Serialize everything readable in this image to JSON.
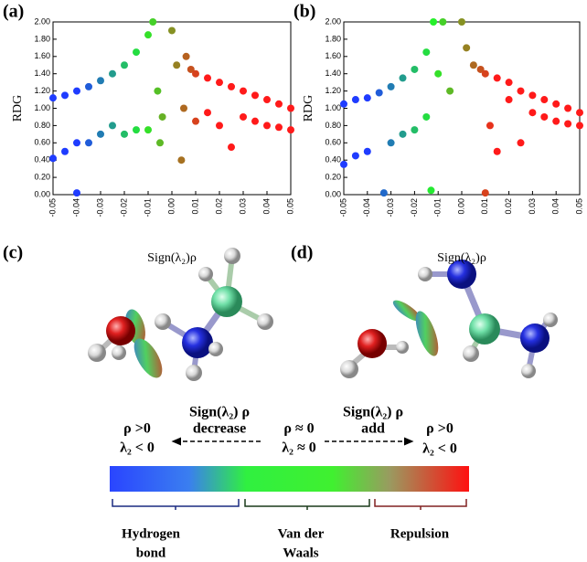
{
  "chart_data": [
    {
      "type": "scatter",
      "panel": "(a)",
      "xlabel": "Sign(λ₂)ρ",
      "ylabel": "RDG",
      "xlim": [
        -0.05,
        0.05
      ],
      "ylim": [
        0,
        2
      ],
      "xticks": [
        -0.05,
        -0.04,
        -0.03,
        -0.02,
        -0.01,
        {
          "value": 0,
          "label": "0.00"
        },
        0.01,
        0.02,
        0.03,
        0.04,
        0.05
      ],
      "yticks": [
        {
          "value": 0,
          "label": "0.00"
        },
        {
          "value": 0.2,
          "label": "0.20"
        },
        {
          "value": 0.4,
          "label": "0.40"
        },
        {
          "value": 0.6,
          "label": "0.60"
        },
        {
          "value": 0.8,
          "label": "0.80"
        },
        {
          "value": 1,
          "label": "1.00"
        },
        {
          "value": 1.2,
          "label": "1.20"
        },
        {
          "value": 1.4,
          "label": "1.40"
        },
        {
          "value": 1.6,
          "label": "1.60"
        },
        {
          "value": 1.8,
          "label": "1.80"
        },
        {
          "value": 2,
          "label": "2.00"
        }
      ],
      "colormap": [
        "#1f3cff",
        "#25f02a",
        "#ff1a1a"
      ],
      "color_stops": [
        -0.04,
        -0.012,
        0.015
      ],
      "series": [
        {
          "x": [
            -0.05,
            -0.05,
            -0.045,
            -0.045,
            -0.04,
            -0.04,
            -0.04,
            -0.035,
            -0.035,
            -0.03,
            -0.03,
            -0.025,
            -0.025,
            -0.02,
            -0.02,
            -0.015,
            -0.015,
            -0.01,
            -0.01,
            -0.008,
            -0.006,
            -0.005,
            -0.004,
            0.0,
            0.002,
            0.004,
            0.005,
            0.006,
            0.008,
            0.01,
            0.01,
            0.015,
            0.015,
            0.02,
            0.02,
            0.025,
            0.025,
            0.03,
            0.03,
            0.035,
            0.035,
            0.04,
            0.04,
            0.045,
            0.045,
            0.05,
            0.05
          ],
          "values": [
            1.12,
            0.42,
            1.15,
            0.5,
            1.2,
            0.02,
            0.6,
            1.25,
            0.6,
            1.32,
            0.7,
            1.4,
            0.8,
            1.5,
            0.7,
            1.65,
            0.75,
            1.85,
            0.75,
            2.0,
            1.2,
            0.6,
            0.9,
            1.9,
            1.5,
            0.4,
            1.0,
            1.6,
            1.45,
            1.4,
            0.85,
            1.35,
            0.95,
            1.3,
            0.8,
            1.25,
            0.55,
            1.2,
            0.9,
            1.15,
            0.85,
            1.1,
            0.8,
            1.05,
            0.78,
            1.0,
            0.75
          ]
        }
      ]
    },
    {
      "type": "scatter",
      "panel": "(b)",
      "xlabel": "Sign(λ₂)ρ",
      "ylabel": "RDG",
      "xlim": [
        -0.05,
        0.05
      ],
      "ylim": [
        0,
        2
      ],
      "xticks": [
        -0.05,
        -0.04,
        -0.03,
        -0.02,
        -0.01,
        {
          "value": 0,
          "label": "0.00"
        },
        0.01,
        0.02,
        0.03,
        0.04,
        0.05
      ],
      "yticks": [
        {
          "value": 0,
          "label": "0.00"
        },
        {
          "value": 0.2,
          "label": "0.20"
        },
        {
          "value": 0.4,
          "label": "0.40"
        },
        {
          "value": 0.6,
          "label": "0.60"
        },
        {
          "value": 0.8,
          "label": "0.80"
        },
        {
          "value": 1,
          "label": "1.00"
        },
        {
          "value": 1.2,
          "label": "1.20"
        },
        {
          "value": 1.4,
          "label": "1.40"
        },
        {
          "value": 1.6,
          "label": "1.60"
        },
        {
          "value": 1.8,
          "label": "1.80"
        },
        {
          "value": 2,
          "label": "2.00"
        }
      ],
      "colormap": [
        "#1f3cff",
        "#25f02a",
        "#ff1a1a"
      ],
      "color_stops": [
        -0.04,
        -0.012,
        0.015
      ],
      "series": [
        {
          "x": [
            -0.05,
            -0.05,
            -0.045,
            -0.045,
            -0.04,
            -0.04,
            -0.035,
            -0.033,
            -0.03,
            -0.03,
            -0.025,
            -0.025,
            -0.02,
            -0.02,
            -0.015,
            -0.015,
            -0.013,
            -0.012,
            -0.01,
            -0.008,
            -0.005,
            0.0,
            0.002,
            0.005,
            0.008,
            0.01,
            0.01,
            0.012,
            0.015,
            0.015,
            0.02,
            0.02,
            0.025,
            0.025,
            0.03,
            0.03,
            0.035,
            0.035,
            0.04,
            0.04,
            0.045,
            0.045,
            0.05,
            0.05
          ],
          "values": [
            1.05,
            0.35,
            1.1,
            0.45,
            1.12,
            0.5,
            1.18,
            0.02,
            1.25,
            0.6,
            1.35,
            0.7,
            1.45,
            0.75,
            1.65,
            0.9,
            0.05,
            2.0,
            1.4,
            2.0,
            1.2,
            2.0,
            1.7,
            1.5,
            1.45,
            0.02,
            1.4,
            0.8,
            1.35,
            0.5,
            1.3,
            1.1,
            0.6,
            1.2,
            1.15,
            0.95,
            1.1,
            0.9,
            1.05,
            0.85,
            1.0,
            0.82,
            0.95,
            0.8
          ]
        }
      ]
    }
  ],
  "panels": {
    "c": "(c)",
    "d": "(d)"
  },
  "scale": {
    "left_top": "Sign(λ₂) ρ",
    "left_bottom": "decrease",
    "right_top": "Sign(λ₂) ρ",
    "right_bottom": "add",
    "left_rho": "ρ >0",
    "left_lambda": "λ₂ < 0",
    "center_rho": "ρ ≈ 0",
    "center_lambda": "λ₂ ≈ 0",
    "right_rho": "ρ >0",
    "right_lambda": "λ₂ < 0"
  },
  "regions": {
    "hydrogen": [
      "Hydrogen",
      "bond"
    ],
    "vdw": [
      "Van der",
      "Waals"
    ],
    "repulsion": [
      "Repulsion"
    ]
  }
}
